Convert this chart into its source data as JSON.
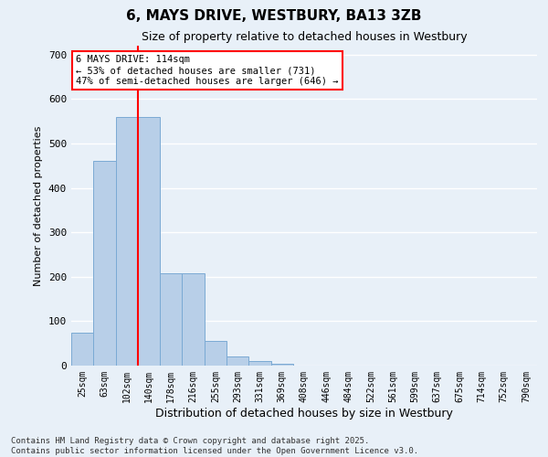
{
  "title": "6, MAYS DRIVE, WESTBURY, BA13 3ZB",
  "subtitle": "Size of property relative to detached houses in Westbury",
  "xlabel": "Distribution of detached houses by size in Westbury",
  "ylabel": "Number of detached properties",
  "categories": [
    "25sqm",
    "63sqm",
    "102sqm",
    "140sqm",
    "178sqm",
    "216sqm",
    "255sqm",
    "293sqm",
    "331sqm",
    "369sqm",
    "408sqm",
    "446sqm",
    "484sqm",
    "522sqm",
    "561sqm",
    "599sqm",
    "637sqm",
    "675sqm",
    "714sqm",
    "752sqm",
    "790sqm"
  ],
  "values": [
    75,
    460,
    560,
    560,
    207,
    207,
    55,
    20,
    10,
    5,
    0,
    0,
    0,
    0,
    0,
    0,
    0,
    0,
    0,
    0,
    0
  ],
  "bar_color": "#b8cfe8",
  "bar_edge_color": "#7baad4",
  "vline_x_idx": 2.5,
  "vline_color": "red",
  "annotation_text": "6 MAYS DRIVE: 114sqm\n← 53% of detached houses are smaller (731)\n47% of semi-detached houses are larger (646) →",
  "annotation_box_color": "white",
  "annotation_box_edge": "red",
  "ylim": [
    0,
    720
  ],
  "yticks": [
    0,
    100,
    200,
    300,
    400,
    500,
    600,
    700
  ],
  "bg_color": "#e8f0f8",
  "grid_color": "#d0d8e8",
  "footer": "Contains HM Land Registry data © Crown copyright and database right 2025.\nContains public sector information licensed under the Open Government Licence v3.0."
}
